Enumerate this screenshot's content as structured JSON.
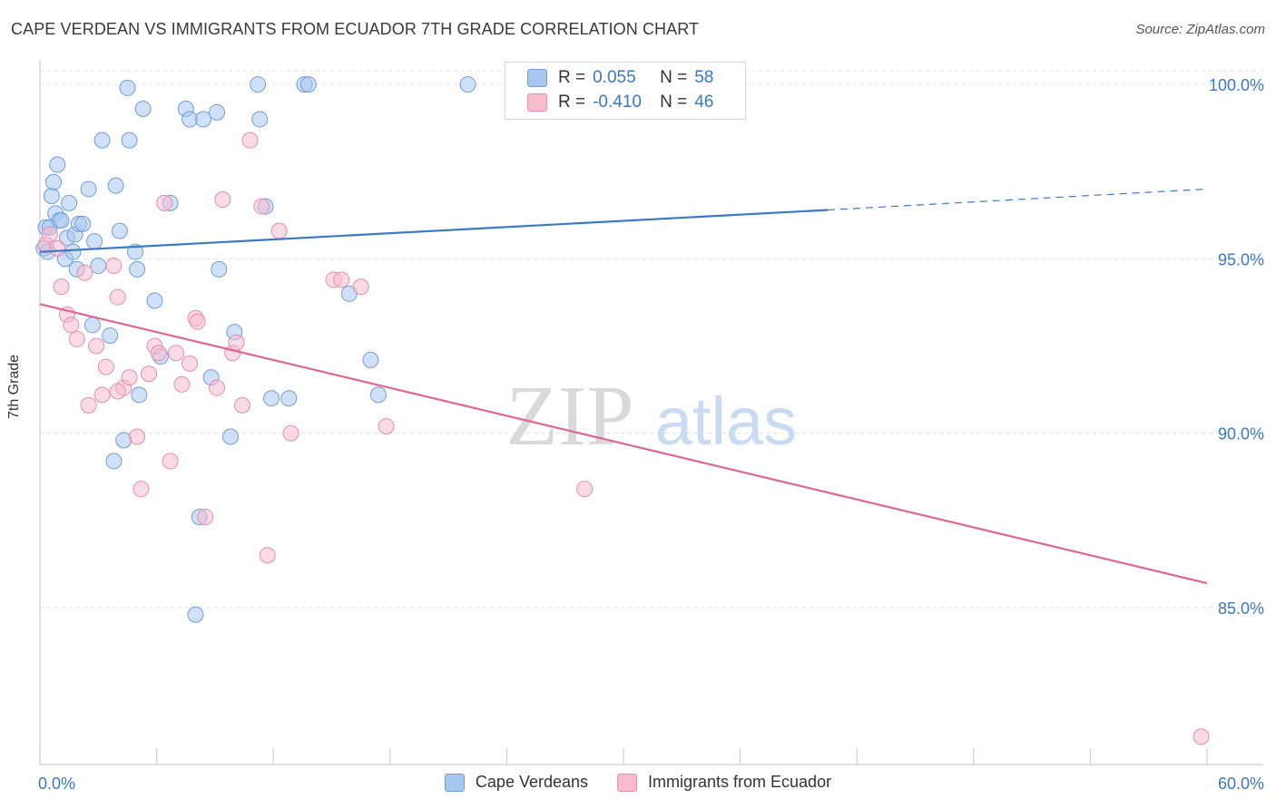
{
  "title": "CAPE VERDEAN VS IMMIGRANTS FROM ECUADOR 7TH GRADE CORRELATION CHART",
  "source": "Source: ZipAtlas.com",
  "watermark": {
    "zip": "ZIP",
    "atlas": "atlas"
  },
  "legend": [
    {
      "r_label": "R =",
      "r_value": "0.055",
      "n_label": "N =",
      "n_value": "58",
      "color": "#a9c6ef",
      "stroke": "#6f9fd8"
    },
    {
      "r_label": "R =",
      "r_value": "-0.410",
      "n_label": "N =",
      "n_value": "46",
      "color": "#f6bccd",
      "stroke": "#e58fac"
    }
  ],
  "bottom_legend": [
    "Cape Verdeans",
    "Immigrants from Ecuador"
  ],
  "chart_data": {
    "type": "scatter",
    "title": "CAPE VERDEAN VS IMMIGRANTS FROM ECUADOR 7TH GRADE CORRELATION CHART",
    "xlabel": "",
    "ylabel": "7th Grade",
    "xlim": [
      0,
      60
    ],
    "ylim": [
      80.5,
      100.6
    ],
    "x_tick_labels": [
      "0.0%",
      "60.0%"
    ],
    "y_ticks": [
      85,
      90,
      95,
      100
    ],
    "y_tick_labels": [
      "85.0%",
      "90.0%",
      "95.0%",
      "100.0%"
    ],
    "grid": true,
    "series": [
      {
        "name": "Cape Verdeans",
        "color": "#a9c6ef",
        "stroke": "#6f9fd8",
        "line_color": "#3a78c8",
        "trend": {
          "x0": 0,
          "y0": 95.2,
          "x1": 40.5,
          "y1": 96.4,
          "dash_x1": 60,
          "dash_y1": 97.0
        },
        "points": [
          [
            0.2,
            95.3
          ],
          [
            0.3,
            95.9
          ],
          [
            0.4,
            95.2
          ],
          [
            0.5,
            95.9
          ],
          [
            0.6,
            96.8
          ],
          [
            0.7,
            97.2
          ],
          [
            0.8,
            96.3
          ],
          [
            0.9,
            97.7
          ],
          [
            1.0,
            96.1
          ],
          [
            1.1,
            96.1
          ],
          [
            1.3,
            95.0
          ],
          [
            1.4,
            95.6
          ],
          [
            1.5,
            96.6
          ],
          [
            1.7,
            95.2
          ],
          [
            1.8,
            95.7
          ],
          [
            1.9,
            94.7
          ],
          [
            2.0,
            96.0
          ],
          [
            2.2,
            96.0
          ],
          [
            2.5,
            97.0
          ],
          [
            2.7,
            93.1
          ],
          [
            2.8,
            95.5
          ],
          [
            3.0,
            94.8
          ],
          [
            3.2,
            98.4
          ],
          [
            3.6,
            92.8
          ],
          [
            3.8,
            89.2
          ],
          [
            3.9,
            97.1
          ],
          [
            4.1,
            95.8
          ],
          [
            4.3,
            89.8
          ],
          [
            4.5,
            99.9
          ],
          [
            4.6,
            98.4
          ],
          [
            4.9,
            95.2
          ],
          [
            5.0,
            94.7
          ],
          [
            5.1,
            91.1
          ],
          [
            5.3,
            99.3
          ],
          [
            5.9,
            93.8
          ],
          [
            6.2,
            92.2
          ],
          [
            6.7,
            96.6
          ],
          [
            7.5,
            99.3
          ],
          [
            7.7,
            99.0
          ],
          [
            8.0,
            84.8
          ],
          [
            8.2,
            87.6
          ],
          [
            8.4,
            99.0
          ],
          [
            8.8,
            91.6
          ],
          [
            9.1,
            99.2
          ],
          [
            9.2,
            94.7
          ],
          [
            9.8,
            89.9
          ],
          [
            10.0,
            92.9
          ],
          [
            11.2,
            100.0
          ],
          [
            11.3,
            99.0
          ],
          [
            11.6,
            96.5
          ],
          [
            11.9,
            91.0
          ],
          [
            12.8,
            91.0
          ],
          [
            13.6,
            100.0
          ],
          [
            13.8,
            100.0
          ],
          [
            15.9,
            94.0
          ],
          [
            17.0,
            92.1
          ],
          [
            17.4,
            91.1
          ],
          [
            22.0,
            100.0
          ]
        ]
      },
      {
        "name": "Immigrants from Ecuador",
        "color": "#f6bccd",
        "stroke": "#e58fac",
        "line_color": "#e06593",
        "trend": {
          "x0": 0,
          "y0": 93.7,
          "x1": 60,
          "y1": 85.7
        },
        "points": [
          [
            0.3,
            95.4
          ],
          [
            0.5,
            95.7
          ],
          [
            0.9,
            95.3
          ],
          [
            1.1,
            94.2
          ],
          [
            1.4,
            93.4
          ],
          [
            1.6,
            93.1
          ],
          [
            1.9,
            92.7
          ],
          [
            2.3,
            94.6
          ],
          [
            2.5,
            90.8
          ],
          [
            2.9,
            92.5
          ],
          [
            3.2,
            91.1
          ],
          [
            3.4,
            91.9
          ],
          [
            3.8,
            94.8
          ],
          [
            4.0,
            93.9
          ],
          [
            4.3,
            91.3
          ],
          [
            4.6,
            91.6
          ],
          [
            5.0,
            89.9
          ],
          [
            5.2,
            88.4
          ],
          [
            5.6,
            91.7
          ],
          [
            5.9,
            92.5
          ],
          [
            6.1,
            92.3
          ],
          [
            6.4,
            96.6
          ],
          [
            6.7,
            89.2
          ],
          [
            7.0,
            92.3
          ],
          [
            7.3,
            91.4
          ],
          [
            7.7,
            92.0
          ],
          [
            8.0,
            93.3
          ],
          [
            8.1,
            93.2
          ],
          [
            8.5,
            87.6
          ],
          [
            9.1,
            91.3
          ],
          [
            9.4,
            96.7
          ],
          [
            9.9,
            92.3
          ],
          [
            10.1,
            92.6
          ],
          [
            10.4,
            90.8
          ],
          [
            10.8,
            98.4
          ],
          [
            11.4,
            96.5
          ],
          [
            11.7,
            86.5
          ],
          [
            12.3,
            95.8
          ],
          [
            12.9,
            90.0
          ],
          [
            15.1,
            94.4
          ],
          [
            15.5,
            94.4
          ],
          [
            16.5,
            94.2
          ],
          [
            17.8,
            90.2
          ],
          [
            28.0,
            88.4
          ],
          [
            59.7,
            81.3
          ],
          [
            4.0,
            91.2
          ]
        ]
      }
    ]
  }
}
